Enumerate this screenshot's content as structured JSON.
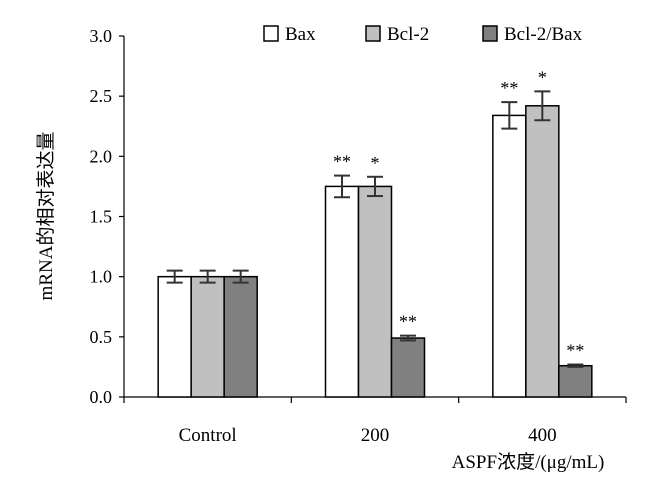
{
  "chart_data": {
    "type": "bar",
    "categories": [
      "Control",
      "200",
      "400"
    ],
    "series": [
      {
        "name": "Bax",
        "values": [
          1.0,
          1.75,
          2.34
        ],
        "errors": [
          0.05,
          0.09,
          0.11
        ],
        "color": "#ffffff",
        "annotations": [
          "",
          "**",
          "**"
        ]
      },
      {
        "name": "Bcl-2",
        "values": [
          1.0,
          1.75,
          2.42
        ],
        "errors": [
          0.05,
          0.08,
          0.12
        ],
        "color": "#c0c0c0",
        "annotations": [
          "",
          "*",
          "*"
        ]
      },
      {
        "name": "Bcl-2/Bax",
        "values": [
          1.0,
          0.49,
          0.26
        ],
        "errors": [
          0.05,
          0.02,
          0.01
        ],
        "color": "#808080",
        "annotations": [
          "",
          "**",
          "**"
        ]
      }
    ],
    "ylim": [
      0,
      3.0
    ],
    "yticks": [
      "0.0",
      "0.5",
      "1.0",
      "1.5",
      "2.0",
      "2.5",
      "3.0"
    ],
    "ylabel": "mRNA的相对表达量",
    "xlabel": "ASPF浓度/(μg/mL)",
    "legend_position": "top-right",
    "grid": false
  }
}
